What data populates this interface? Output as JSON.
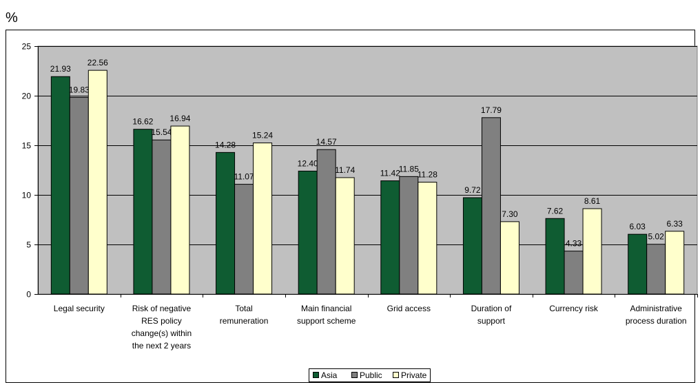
{
  "chart_data": {
    "type": "bar",
    "unit_label": "%",
    "categories": [
      [
        "Legal security"
      ],
      [
        "Risk of negative",
        "RES policy",
        "change(s) within",
        "the next 2 years"
      ],
      [
        "Total",
        "remuneration"
      ],
      [
        "Main financial",
        "support scheme"
      ],
      [
        "Grid access"
      ],
      [
        "Duration of",
        "support"
      ],
      [
        "Currency risk"
      ],
      [
        "Administrative",
        "process duration"
      ]
    ],
    "series": [
      {
        "name": "Asia",
        "color": "#0f5c32",
        "values": [
          21.93,
          16.62,
          14.28,
          12.4,
          11.42,
          9.72,
          7.62,
          6.03
        ],
        "labels": [
          "21.93",
          "16.62",
          "14.28",
          "12.40",
          "11.42",
          "9.72",
          "7.62",
          "6.03"
        ]
      },
      {
        "name": "Public",
        "color": "#808080",
        "values": [
          19.83,
          15.54,
          11.07,
          14.57,
          11.85,
          17.79,
          4.33,
          5.02
        ],
        "labels": [
          "19.83",
          "15.54",
          "11.07",
          "14.57",
          "11.85",
          "17.79",
          "4.33",
          "5.02"
        ]
      },
      {
        "name": "Private",
        "color": "#ffffcc",
        "values": [
          22.56,
          16.94,
          15.24,
          11.74,
          11.28,
          7.3,
          8.61,
          6.33
        ],
        "labels": [
          "22.56",
          "16.94",
          "15.24",
          "11.74",
          "11.28",
          "7.30",
          "8.61",
          "6.33"
        ]
      }
    ],
    "ylim": [
      0,
      25
    ],
    "yticks": [
      0,
      5,
      10,
      15,
      20,
      25
    ],
    "grid": true,
    "plot_background": "#c0c0c0",
    "legend_position": "bottom-center"
  }
}
